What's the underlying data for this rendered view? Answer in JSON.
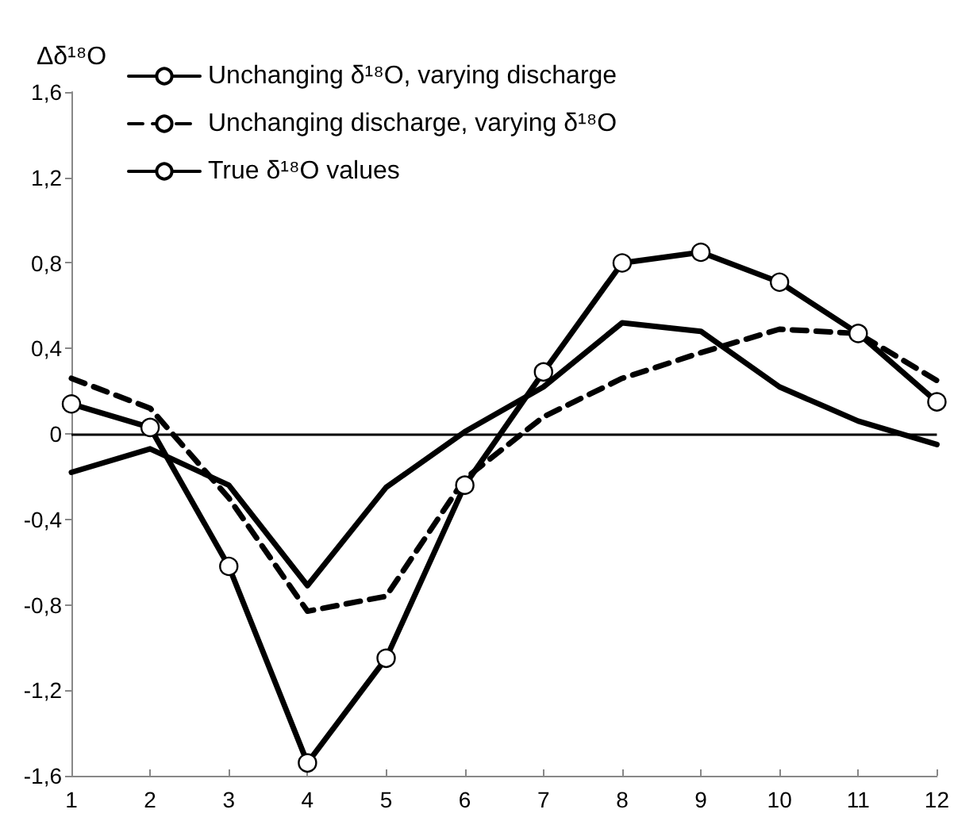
{
  "chart_data": {
    "type": "line",
    "ylabel": "Δδ¹⁸O",
    "x": [
      1,
      2,
      3,
      4,
      5,
      6,
      7,
      8,
      9,
      10,
      11,
      12
    ],
    "series": [
      {
        "name": "Unchanging δ¹⁸O, varying discharge",
        "color": "#000000",
        "line_style": "solid",
        "marker": "none",
        "values": [
          -0.18,
          -0.07,
          -0.24,
          -0.71,
          -0.25,
          0.01,
          0.22,
          0.52,
          0.48,
          0.22,
          0.06,
          -0.05
        ]
      },
      {
        "name": "Unchanging discharge, varying δ¹⁸O",
        "color": "#000000",
        "line_style": "dashed",
        "marker": "none",
        "values": [
          0.26,
          0.12,
          -0.3,
          -0.83,
          -0.76,
          -0.21,
          0.08,
          0.26,
          0.38,
          0.49,
          0.47,
          0.25
        ]
      },
      {
        "name": "True δ¹⁸O values",
        "color": "#000000",
        "line_style": "solid",
        "marker": "circle",
        "values": [
          0.14,
          0.03,
          -0.62,
          -1.54,
          -1.05,
          -0.24,
          0.29,
          0.8,
          0.85,
          0.71,
          0.47,
          0.15
        ]
      }
    ],
    "xlim": [
      1,
      12
    ],
    "xticks": [
      1,
      2,
      3,
      4,
      5,
      6,
      7,
      8,
      9,
      10,
      11,
      12
    ],
    "ylim": [
      -1.6,
      1.6
    ],
    "yticks": [
      {
        "value": -1.6,
        "label": "-1,6"
      },
      {
        "value": -1.2,
        "label": "-1,2"
      },
      {
        "value": -0.8,
        "label": "-0,8"
      },
      {
        "value": -0.4,
        "label": "-0,4"
      },
      {
        "value": 0,
        "label": "0"
      },
      {
        "value": 0.4,
        "label": "0,4"
      },
      {
        "value": 0.8,
        "label": "0,8"
      },
      {
        "value": 1.2,
        "label": "1,2"
      },
      {
        "value": 1.6,
        "label": "1,6"
      }
    ],
    "ref_lines": [
      {
        "axis": "y",
        "value": 0,
        "color": "#000000",
        "line_style": "solid"
      }
    ],
    "grid": false,
    "legend": "top left"
  }
}
